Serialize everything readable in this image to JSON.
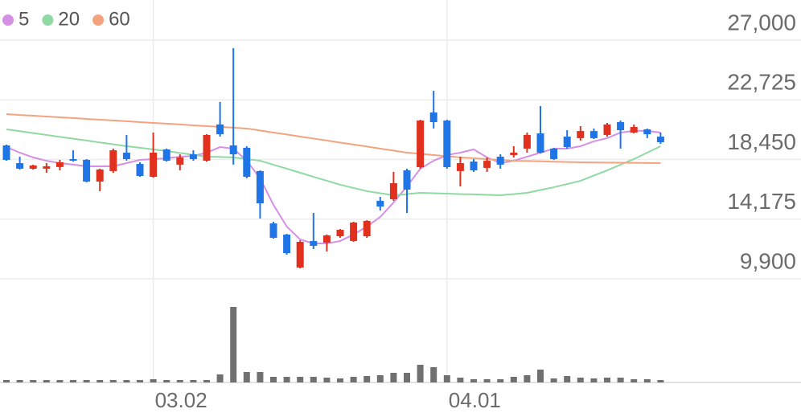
{
  "chart_data": {
    "type": "candlestick",
    "categories": [
      null,
      null,
      null,
      null,
      null,
      null,
      null,
      null,
      null,
      null,
      null,
      "03.02",
      null,
      null,
      null,
      null,
      null,
      null,
      null,
      null,
      null,
      null,
      null,
      null,
      null,
      null,
      null,
      null,
      null,
      null,
      null,
      null,
      null,
      "04.01",
      null,
      null,
      null,
      null,
      null,
      null,
      null,
      null,
      null,
      null,
      null,
      null,
      null,
      null,
      null,
      null
    ],
    "open": [
      19460,
      18190,
      17790,
      17790,
      17910,
      18480,
      18420,
      16870,
      17620,
      18940,
      18130,
      17210,
      19170,
      18080,
      18820,
      18360,
      20960,
      19460,
      19290,
      17620,
      13870,
      13070,
      10710,
      12610,
      12490,
      12950,
      12610,
      12950,
      15490,
      15600,
      17670,
      17900,
      21820,
      21240,
      17620,
      18300,
      17850,
      18650,
      18770,
      19230,
      20320,
      19230,
      20090,
      19980,
      20490,
      20210,
      21130,
      20380,
      20610,
      20090
    ],
    "high": [
      19520,
      18650,
      18080,
      18190,
      18420,
      19110,
      18480,
      17790,
      19230,
      20210,
      18250,
      20380,
      19230,
      18820,
      19110,
      20260,
      22570,
      26430,
      19400,
      17670,
      13990,
      13120,
      12660,
      14620,
      13070,
      13470,
      13990,
      14100,
      15770,
      17560,
      17790,
      21300,
      23370,
      21300,
      18650,
      18480,
      18590,
      18820,
      19400,
      20380,
      22280,
      19290,
      20550,
      20840,
      20670,
      21070,
      21240,
      20960,
      20670,
      20380
    ],
    "low": [
      18360,
      17730,
      17730,
      17500,
      17670,
      18300,
      16810,
      16180,
      17500,
      18360,
      17210,
      17150,
      18300,
      17670,
      18360,
      18300,
      20090,
      18080,
      17100,
      14220,
      12780,
      11630,
      10650,
      12030,
      11860,
      12840,
      12550,
      12840,
      14790,
      15490,
      14620,
      17790,
      20670,
      17790,
      16520,
      17560,
      17560,
      17790,
      18590,
      18940,
      18880,
      18420,
      19230,
      19800,
      19920,
      20090,
      19230,
      20320,
      19980,
      19570
    ],
    "close": [
      18420,
      17790,
      18020,
      17960,
      18250,
      18360,
      16870,
      17730,
      19110,
      18480,
      17270,
      18940,
      18360,
      18590,
      18480,
      20210,
      20260,
      18820,
      17210,
      15310,
      12840,
      11740,
      12550,
      12260,
      13010,
      13410,
      13930,
      14050,
      15080,
      16750,
      16290,
      21240,
      21130,
      17900,
      18190,
      17670,
      18360,
      18080,
      18940,
      20210,
      18940,
      18480,
      19340,
      20490,
      19980,
      20960,
      20550,
      20780,
      20260,
      19690
    ],
    "up_color": "#e2301f",
    "down_color": "#1f74e6",
    "moving_averages": [
      {
        "name": "5",
        "color": "#d590e6",
        "values": [
          19340,
          18940,
          18600,
          18360,
          18190,
          18080,
          17960,
          17960,
          17960,
          18190,
          18420,
          18480,
          18540,
          18650,
          18710,
          18940,
          19340,
          19230,
          18360,
          17100,
          15200,
          13640,
          12720,
          12430,
          12430,
          12610,
          13070,
          13640,
          14330,
          15370,
          16520,
          17790,
          18360,
          18770,
          18940,
          19170,
          18600,
          18190,
          18360,
          18650,
          18940,
          19230,
          19230,
          19400,
          19750,
          19980,
          20380,
          20500,
          20500,
          20380
        ]
      },
      {
        "name": "20",
        "color": "#8fd9a2",
        "values": [
          20610,
          20480,
          20340,
          20210,
          20070,
          19940,
          19810,
          19670,
          19540,
          19400,
          19290,
          19170,
          19060,
          18920,
          18790,
          18650,
          18630,
          18600,
          18480,
          18360,
          18070,
          17790,
          17500,
          17210,
          16930,
          16640,
          16410,
          16180,
          16030,
          15890,
          15970,
          16060,
          16030,
          16000,
          15970,
          15950,
          15920,
          15890,
          15970,
          16060,
          16260,
          16460,
          16690,
          16920,
          17300,
          17670,
          18080,
          18480,
          18940,
          19400
        ]
      },
      {
        "name": "60",
        "color": "#f3a47f",
        "values": [
          21700,
          21640,
          21590,
          21530,
          21470,
          21420,
          21360,
          21300,
          21250,
          21190,
          21130,
          21070,
          21020,
          20960,
          20900,
          20840,
          20790,
          20730,
          20670,
          20530,
          20380,
          20240,
          20090,
          19950,
          19810,
          19660,
          19520,
          19380,
          19230,
          19090,
          18940,
          18860,
          18770,
          18690,
          18600,
          18540,
          18480,
          18420,
          18360,
          18340,
          18320,
          18290,
          18270,
          18250,
          18240,
          18230,
          18220,
          18210,
          18200,
          18190
        ]
      }
    ],
    "volume": [
      3,
      3,
      3,
      3,
      3,
      3,
      3,
      3,
      3,
      3,
      3,
      4,
      3,
      3,
      3,
      3,
      10,
      94,
      13,
      13,
      7,
      7,
      7,
      7,
      6,
      5,
      7,
      8,
      9,
      12,
      12,
      22,
      19,
      9,
      6,
      4,
      4,
      4,
      7,
      9,
      16,
      5,
      8,
      6,
      5,
      6,
      6,
      4,
      4,
      3
    ],
    "volume_color": "#707070",
    "ylim": [
      9900,
      27000
    ],
    "yticks": [
      {
        "value": 9900,
        "label": "9,900"
      },
      {
        "value": 14175,
        "label": "14,175"
      },
      {
        "value": 18450,
        "label": "18,450"
      },
      {
        "value": 22725,
        "label": "22,725"
      },
      {
        "value": 27000,
        "label": "27,000"
      }
    ],
    "grid": true
  }
}
